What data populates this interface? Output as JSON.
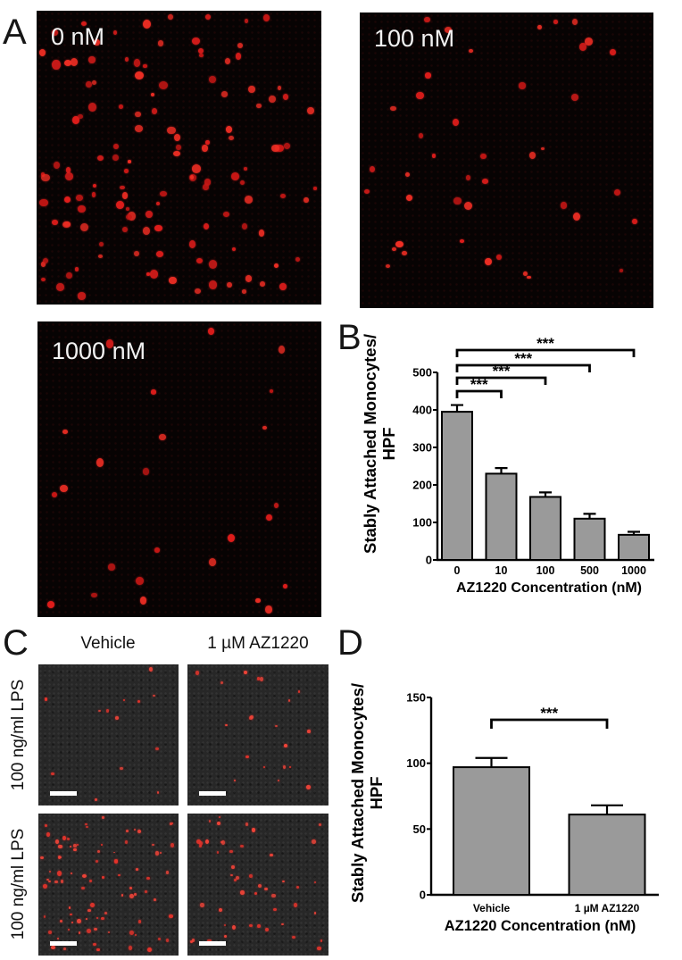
{
  "figure": {
    "panels": {
      "a": {
        "letter": "A",
        "images": [
          {
            "label": "0 nM",
            "dots": {
              "count": 130,
              "min_size": 4,
              "max_size": 10,
              "seed": 11,
              "colors": [
                "#ef2e24",
                "#e01d1b",
                "#c91715"
              ]
            }
          },
          {
            "label": "100 nM",
            "dots": {
              "count": 42,
              "min_size": 4,
              "max_size": 9,
              "seed": 22,
              "colors": [
                "#ef2e24",
                "#e01d1b",
                "#c91715"
              ]
            }
          },
          {
            "label": "1000 nM",
            "dots": {
              "count": 25,
              "min_size": 4,
              "max_size": 9,
              "seed": 33,
              "colors": [
                "#ef2e24",
                "#e01d1b",
                "#c91715"
              ]
            }
          }
        ]
      },
      "b": {
        "letter": "B"
      },
      "c": {
        "letter": "C",
        "col_labels": [
          "Vehicle",
          "1 µM AZ1220"
        ],
        "row_labels": [
          "100 ng/ml LPS",
          "100 ng/ml LPS"
        ],
        "images": [
          {
            "dots": {
              "count": 13,
              "min_size": 2,
              "max_size": 4,
              "seed": 44,
              "colors": [
                "#f04438",
                "#e5342b"
              ]
            }
          },
          {
            "dots": {
              "count": 20,
              "min_size": 2,
              "max_size": 5,
              "seed": 55,
              "colors": [
                "#f04438",
                "#e5342b"
              ]
            }
          },
          {
            "dots": {
              "count": 85,
              "min_size": 2,
              "max_size": 5,
              "seed": 66,
              "colors": [
                "#f04438",
                "#e5342b"
              ]
            }
          },
          {
            "dots": {
              "count": 48,
              "min_size": 2,
              "max_size": 5,
              "seed": 77,
              "colors": [
                "#f04438",
                "#e5342b"
              ]
            }
          }
        ]
      },
      "d": {
        "letter": "D"
      }
    }
  },
  "chart_data": [
    {
      "id": "B",
      "type": "bar",
      "title": "",
      "categories": [
        "0",
        "10",
        "100",
        "500",
        "1000"
      ],
      "values": [
        395,
        230,
        168,
        110,
        67
      ],
      "errors": [
        18,
        15,
        12,
        13,
        8
      ],
      "xlabel": "AZ1220 Concentration (nM)",
      "ylabel": "Stably Attached Monocytes/HPF",
      "ylabel_lines": [
        "Stably Attached Monocytes/",
        "HPF"
      ],
      "ylim": [
        0,
        500
      ],
      "yticks": [
        0,
        100,
        200,
        300,
        400,
        500
      ],
      "grid": false,
      "legend": "none",
      "bar_color": "#9a9a9a",
      "significance": [
        {
          "from": 0,
          "to": 1,
          "label": "***"
        },
        {
          "from": 0,
          "to": 2,
          "label": "***"
        },
        {
          "from": 0,
          "to": 3,
          "label": "***"
        },
        {
          "from": 0,
          "to": 4,
          "label": "***"
        }
      ]
    },
    {
      "id": "D",
      "type": "bar",
      "title": "",
      "categories": [
        "Vehicle",
        "1 µM AZ1220"
      ],
      "values": [
        97,
        61
      ],
      "errors": [
        7,
        7
      ],
      "xlabel": "AZ1220 Concentration (nM)",
      "ylabel": "Stably Attached Monocytes/HPF",
      "ylabel_lines": [
        "Stably Attached Monocytes/",
        "HPF"
      ],
      "ylim": [
        0,
        150
      ],
      "yticks": [
        0,
        50,
        100,
        150
      ],
      "grid": false,
      "legend": "none",
      "bar_color": "#9a9a9a",
      "significance": [
        {
          "from": 0,
          "to": 1,
          "label": "***"
        }
      ]
    }
  ]
}
